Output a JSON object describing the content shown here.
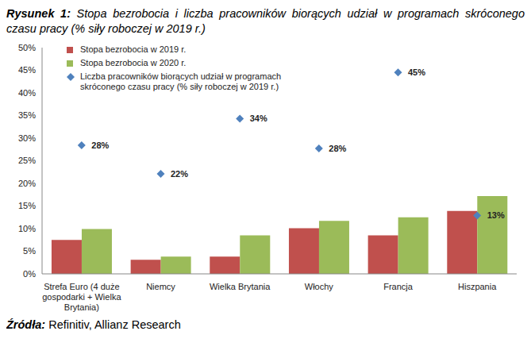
{
  "chart_data": {
    "type": "bar",
    "title": "Rysunek 1: Stopa bezrobocia i liczba pracowników biorących udział w programach skróconego czasu pracy (% siły roboczej w 2019 r.)",
    "source": "Źródła: Refinitiv, Allianz Research",
    "categories": [
      "Strefa Euro (4 duże gospodarki + Wielka Brytania)",
      "Niemcy",
      "Wielka Brytania",
      "Włochy",
      "Francja",
      "Hiszpania"
    ],
    "series": [
      {
        "name": "Stopa bezrobocia w 2019 r.",
        "color": "#c0504d",
        "values": [
          7.5,
          3.1,
          3.8,
          10.1,
          8.5,
          13.9
        ]
      },
      {
        "name": "Stopa bezrobocia w 2020 r.",
        "color": "#9bbb59",
        "values": [
          9.9,
          3.8,
          8.5,
          11.7,
          12.5,
          17.2
        ]
      },
      {
        "name": "Liczba pracowników biorących udział w programach skróconego czasu pracy (% siły roboczej w 2019 r.)",
        "color": "#4f81bd",
        "type": "scatter",
        "marker": "diamond",
        "data_labels": true,
        "values": [
          28.4,
          22.1,
          34.3,
          27.7,
          44.5,
          12.9
        ],
        "value_labels": [
          "28%",
          "22%",
          "34%",
          "28%",
          "45%",
          "13%"
        ]
      }
    ],
    "ylim": [
      0,
      50
    ],
    "yticks": [
      {
        "value": 0,
        "label": "0%"
      },
      {
        "value": 5,
        "label": "5%"
      },
      {
        "value": 10,
        "label": "10%"
      },
      {
        "value": 15,
        "label": "15%"
      },
      {
        "value": 20,
        "label": "20%"
      },
      {
        "value": 25,
        "label": "25%"
      },
      {
        "value": 30,
        "label": "30%"
      },
      {
        "value": 35,
        "label": "35%"
      },
      {
        "value": 40,
        "label": "40%"
      },
      {
        "value": 45,
        "label": "45%"
      },
      {
        "value": 50,
        "label": "50%"
      }
    ],
    "grid": false,
    "legend": "upper left"
  }
}
